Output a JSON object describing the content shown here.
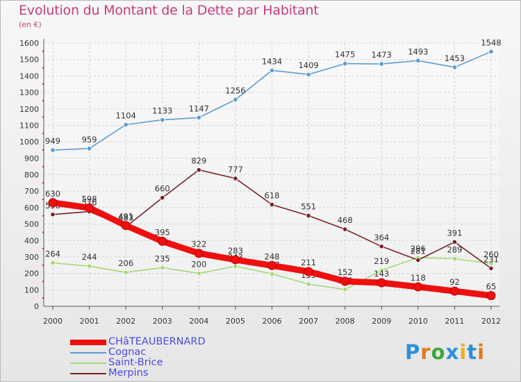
{
  "title": "Evolution du Montant de la Dette par Habitant",
  "subtitle": "(en €)",
  "brand": {
    "text": "Proxiti",
    "letter_colors": [
      "#2e8fd8",
      "#e07a1f",
      "#3aa640",
      "#2e8fd8",
      "#e8b21e",
      "#2e8fd8",
      "#e07a1f"
    ]
  },
  "chart_data": {
    "type": "line",
    "categories": [
      "2000",
      "2001",
      "2002",
      "2003",
      "2004",
      "2005",
      "2006",
      "2007",
      "2008",
      "2009",
      "2010",
      "2011",
      "2012"
    ],
    "ylim": [
      0,
      1600
    ],
    "yticks": [
      0,
      100,
      200,
      300,
      400,
      500,
      600,
      700,
      800,
      900,
      1000,
      1100,
      1200,
      1300,
      1400,
      1500,
      1600
    ],
    "grid": true,
    "legend_position": "bottom-left",
    "series": [
      {
        "name": "Cognac",
        "color": "#5b9bd5",
        "values": [
          949,
          959,
          1104,
          1133,
          1147,
          1256,
          1434,
          1409,
          1475,
          1473,
          1493,
          1453,
          1548
        ],
        "labels": [
          "949",
          "959",
          "1104",
          "1133",
          "1147",
          "1256",
          "1434",
          "1409",
          "1475",
          "1473",
          "1493",
          "1453",
          "1548"
        ]
      },
      {
        "name": "Saint-Brice",
        "color": "#a3d977",
        "values": [
          264,
          244,
          206,
          235,
          200,
          243,
          197,
          135,
          102,
          219,
          296,
          289,
          260
        ],
        "labels": [
          "264",
          "244",
          "206",
          "235",
          "200",
          "243",
          "197",
          "135",
          "102",
          "219",
          "296",
          "289",
          "260"
        ]
      },
      {
        "name": "Merpins",
        "color": "#7a1f24",
        "values": [
          558,
          576,
          483,
          660,
          829,
          777,
          618,
          551,
          468,
          364,
          281,
          391,
          231
        ],
        "labels": [
          "558",
          "576",
          "483",
          "660",
          "829",
          "777",
          "618",
          "551",
          "468",
          "364",
          "281",
          "391",
          "231"
        ]
      },
      {
        "name": "CHâTEAUBERNARD",
        "color": "#ee0f0f",
        "values": [
          630,
          598,
          491,
          395,
          322,
          283,
          248,
          211,
          152,
          143,
          118,
          92,
          65
        ],
        "labels": [
          "630",
          "598",
          "491",
          "395",
          "322",
          "283",
          "248",
          "211",
          "152",
          "143",
          "118",
          "92",
          "65"
        ]
      }
    ]
  },
  "legend": [
    {
      "label": "CHâTEAUBERNARD",
      "color": "#ee0f0f"
    },
    {
      "label": "Cognac",
      "color": "#5b9bd5"
    },
    {
      "label": "Saint-Brice",
      "color": "#a3d977"
    },
    {
      "label": "Merpins",
      "color": "#7a1f24"
    }
  ]
}
